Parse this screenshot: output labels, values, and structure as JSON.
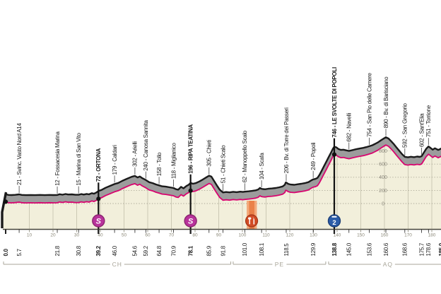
{
  "chart_data": {
    "type": "area",
    "title": "",
    "xlabel_unit": "km",
    "ylabel_unit": "m",
    "x_axis": {
      "ticks_km": [
        10,
        20,
        30,
        40,
        50,
        60,
        70,
        80,
        90,
        100,
        110,
        120,
        130,
        140,
        150,
        160,
        170,
        180
      ],
      "range_km": [
        0,
        184
      ]
    },
    "y_axis": {
      "ticks_m": [
        0,
        200,
        400,
        600,
        800
      ],
      "labels_at_km": 159.4,
      "ylim": [
        0,
        1000
      ]
    },
    "provinces": [
      {
        "code": "CH",
        "from_km": -0.9,
        "to_km": 95.1
      },
      {
        "code": "PE",
        "from_km": 96.1,
        "to_km": 135.2
      },
      {
        "code": "AQ",
        "from_km": 136.4,
        "to_km": 186.5
      }
    ],
    "waypoints": [
      {
        "km": 0.0,
        "km_label": "0.0",
        "name": "",
        "bold": true,
        "dot": true
      },
      {
        "km": 5.7,
        "km_label": "5.7",
        "name": "21 - Svinc. Vasto Nord A14",
        "bold": false
      },
      {
        "km": 21.8,
        "km_label": "21.8",
        "name": "12 - Fossacesia Marina",
        "bold": false
      },
      {
        "km": 30.8,
        "km_label": "30.8",
        "name": "15 - Marina di San Vito",
        "bold": false
      },
      {
        "km": 39.2,
        "km_label": "39.2",
        "name": "72 - ORTONA",
        "bold": true,
        "dot": true,
        "marker": "sprint"
      },
      {
        "km": 46.0,
        "km_label": "46.0",
        "name": "179 - Caldari",
        "bold": false
      },
      {
        "km": 54.6,
        "km_label": "54.6",
        "name": "302 - Arielli",
        "bold": false
      },
      {
        "km": 59.2,
        "km_label": "59.2",
        "name": "240 - Canosa Sannita",
        "bold": false
      },
      {
        "km": 64.8,
        "km_label": "64.8",
        "name": "158 - Tollo",
        "bold": false
      },
      {
        "km": 70.9,
        "km_label": "70.9",
        "name": "118 - Miglianico",
        "bold": false
      },
      {
        "km": 78.1,
        "km_label": "78.1",
        "name": "196 - RIPA TEATINA",
        "bold": true,
        "dot": true,
        "marker": "sprint"
      },
      {
        "km": 85.9,
        "km_label": "85.9",
        "name": "305 - Chieti",
        "bold": false
      },
      {
        "km": 91.8,
        "km_label": "91.8",
        "name": "51 - Chieti Scalo",
        "bold": false
      },
      {
        "km": 101.0,
        "km_label": "101.0",
        "name": "62 - Manoppello Scalo",
        "bold": false
      },
      {
        "km": 108.1,
        "km_label": "108.1",
        "name": "104 - Scafa",
        "bold": false
      },
      {
        "km": 118.5,
        "km_label": "118.5",
        "name": "206 - Bv. di Torre dei Passeri",
        "bold": false
      },
      {
        "km": 129.9,
        "km_label": "129.9",
        "name": "249 - Popoli",
        "bold": false
      },
      {
        "km": 138.8,
        "km_label": "138.8",
        "name": "746 - LE SVOLTE DI POPOLI",
        "bold": true,
        "dot": true,
        "marker": "climb2"
      },
      {
        "km": 145.0,
        "km_label": "145.0",
        "name": "682 - Navelli",
        "bold": false
      },
      {
        "km": 153.6,
        "km_label": "153.6",
        "name": "754 - San Pio delle Camere",
        "bold": false
      },
      {
        "km": 160.6,
        "km_label": "160.6",
        "name": "890 - Bv. di Barisciano",
        "bold": false
      },
      {
        "km": 168.6,
        "km_label": "168.6",
        "name": "592 - San Gregorio",
        "bold": false
      },
      {
        "km": 175.7,
        "km_label": "175.7",
        "name": "602 - Sant'Elia",
        "bold": false
      },
      {
        "km": 178.6,
        "km_label": "178.6",
        "name": "751 - Torrione",
        "bold": false
      },
      {
        "km": 185.0,
        "km_label": "185.0",
        "name": "",
        "bold": true,
        "cut": true
      }
    ],
    "markers": [
      {
        "kind": "sprint",
        "symbol": "S",
        "km": 39.2
      },
      {
        "kind": "sprint",
        "symbol": "S",
        "km": 78.1
      },
      {
        "kind": "feed_zone",
        "icon": "fork-knife-icon",
        "from_km": 101.8,
        "to_km": 106.1,
        "icon_km": 103.9
      },
      {
        "kind": "climb",
        "symbol": "2",
        "category": "2",
        "km": 138.8
      }
    ],
    "profile": [
      [
        0,
        28
      ],
      [
        0.4,
        20
      ],
      [
        1.2,
        13
      ],
      [
        2.5,
        11
      ],
      [
        4,
        14
      ],
      [
        5.7,
        21
      ],
      [
        6.8,
        13
      ],
      [
        8.5,
        10
      ],
      [
        10.5,
        12
      ],
      [
        12.5,
        10
      ],
      [
        14.5,
        13
      ],
      [
        16.5,
        10
      ],
      [
        18.5,
        13
      ],
      [
        20,
        11
      ],
      [
        21.8,
        12
      ],
      [
        22.8,
        24
      ],
      [
        24,
        16
      ],
      [
        25.3,
        27
      ],
      [
        26.4,
        19
      ],
      [
        28,
        22
      ],
      [
        29.4,
        15
      ],
      [
        30.8,
        15
      ],
      [
        31.9,
        26
      ],
      [
        33,
        18
      ],
      [
        34.2,
        28
      ],
      [
        35.2,
        21
      ],
      [
        36.4,
        40
      ],
      [
        37.3,
        31
      ],
      [
        38.3,
        50
      ],
      [
        39.2,
        72
      ],
      [
        40.6,
        90
      ],
      [
        42.2,
        122
      ],
      [
        44.2,
        152
      ],
      [
        46,
        179
      ],
      [
        47.6,
        196
      ],
      [
        49.2,
        226
      ],
      [
        51.2,
        258
      ],
      [
        53.2,
        288
      ],
      [
        54.6,
        302
      ],
      [
        55.7,
        279
      ],
      [
        56.7,
        294
      ],
      [
        57.7,
        268
      ],
      [
        59.2,
        240
      ],
      [
        60.6,
        206
      ],
      [
        62.1,
        192
      ],
      [
        63.5,
        172
      ],
      [
        64.8,
        158
      ],
      [
        66.1,
        144
      ],
      [
        67.6,
        139
      ],
      [
        69.2,
        129
      ],
      [
        70.9,
        118
      ],
      [
        71.9,
        100
      ],
      [
        72.9,
        92
      ],
      [
        74.1,
        136
      ],
      [
        75.1,
        113
      ],
      [
        76.4,
        149
      ],
      [
        77.3,
        168
      ],
      [
        78.1,
        196
      ],
      [
        79.1,
        183
      ],
      [
        80.3,
        192
      ],
      [
        81.8,
        217
      ],
      [
        83.3,
        248
      ],
      [
        84.8,
        282
      ],
      [
        85.9,
        305
      ],
      [
        86.9,
        291
      ],
      [
        87.9,
        232
      ],
      [
        89.2,
        158
      ],
      [
        90.4,
        94
      ],
      [
        91.8,
        51
      ],
      [
        93.1,
        57
      ],
      [
        94.6,
        52
      ],
      [
        96.1,
        60
      ],
      [
        97.6,
        55
      ],
      [
        99.1,
        62
      ],
      [
        100.2,
        58
      ],
      [
        101,
        62
      ],
      [
        102.6,
        68
      ],
      [
        104.1,
        74
      ],
      [
        105.6,
        83
      ],
      [
        106.7,
        96
      ],
      [
        107.4,
        119
      ],
      [
        107.9,
        108
      ],
      [
        108.6,
        102
      ],
      [
        109.6,
        99
      ],
      [
        111,
        108
      ],
      [
        112.6,
        112
      ],
      [
        114.1,
        118
      ],
      [
        115.6,
        129
      ],
      [
        117,
        142
      ],
      [
        117.9,
        168
      ],
      [
        118.3,
        202
      ],
      [
        118.7,
        198
      ],
      [
        119.3,
        182
      ],
      [
        120.4,
        171
      ],
      [
        121.9,
        167
      ],
      [
        123.4,
        175
      ],
      [
        124.9,
        183
      ],
      [
        126.4,
        193
      ],
      [
        127.9,
        207
      ],
      [
        129.2,
        237
      ],
      [
        129.9,
        249
      ],
      [
        130.9,
        257
      ],
      [
        131.7,
        272
      ],
      [
        132.5,
        315
      ],
      [
        133.4,
        375
      ],
      [
        134.4,
        445
      ],
      [
        135.4,
        515
      ],
      [
        136.4,
        585
      ],
      [
        137.4,
        655
      ],
      [
        138.2,
        715
      ],
      [
        138.8,
        746
      ],
      [
        139.7,
        737
      ],
      [
        140.6,
        711
      ],
      [
        141.6,
        698
      ],
      [
        142.7,
        701
      ],
      [
        143.8,
        691
      ],
      [
        145,
        682
      ],
      [
        146.6,
        696
      ],
      [
        148.1,
        709
      ],
      [
        149.6,
        719
      ],
      [
        151.1,
        729
      ],
      [
        152.4,
        741
      ],
      [
        153.6,
        754
      ],
      [
        154.9,
        769
      ],
      [
        156.1,
        790
      ],
      [
        157.3,
        814
      ],
      [
        158.5,
        844
      ],
      [
        159.6,
        869
      ],
      [
        160.6,
        890
      ],
      [
        161.7,
        871
      ],
      [
        162.7,
        836
      ],
      [
        163.8,
        792
      ],
      [
        165,
        738
      ],
      [
        166.2,
        686
      ],
      [
        167.4,
        634
      ],
      [
        168.6,
        592
      ],
      [
        169.9,
        585
      ],
      [
        171.2,
        594
      ],
      [
        172.5,
        587
      ],
      [
        173.8,
        597
      ],
      [
        174.9,
        591
      ],
      [
        175.7,
        602
      ],
      [
        176.6,
        655
      ],
      [
        177.6,
        714
      ],
      [
        178.6,
        751
      ],
      [
        179.5,
        727
      ],
      [
        180.4,
        701
      ],
      [
        181.3,
        723
      ],
      [
        182,
        711
      ],
      [
        182.7,
        697
      ],
      [
        183.4,
        709
      ],
      [
        184,
        719
      ]
    ],
    "legend_position": "none",
    "grid": {
      "horizontal_dotted": true,
      "vertical_every_km": 10
    }
  },
  "colors": {
    "background": "#ffffff",
    "terrain_fill": "#f2efdb",
    "band_fill": "#9c9c9c",
    "profile_top_line": "#1a1a1a",
    "route_line_pink": "#d8046f",
    "grid_vertical": "#c8c5b0",
    "grid_dotted": "#a9a695",
    "axis_line": "#46443c",
    "tick_number": "#8b8878",
    "elev_number": "#8f8c80",
    "province": "#a8a598",
    "label_text": "#1a1a1a",
    "sprint_circle": "#b8339b",
    "sprint_circle_rim": "#8c2470",
    "climb_circle": "#2b5ca8",
    "climb_circle_rim": "#1d3f77",
    "feed_band_outer": "#f3aa7c",
    "feed_band_inner": "#ea8148",
    "feed_circle": "#d14c24",
    "feed_circle_rim": "#a33417"
  }
}
